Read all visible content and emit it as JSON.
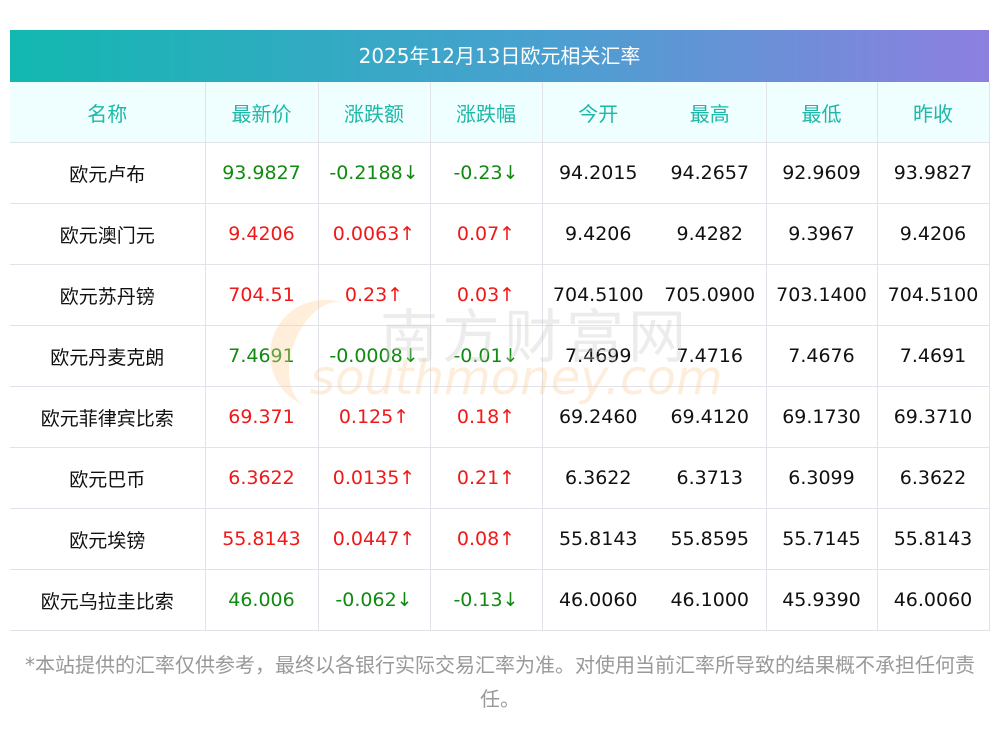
{
  "title": "2025年12月13日欧元相关汇率",
  "headers": [
    "名称",
    "最新价",
    "涨跌额",
    "涨跌幅",
    "今开",
    "最高",
    "最低",
    "昨收"
  ],
  "rows": [
    {
      "name": "欧元卢布",
      "latest": "93.9827",
      "change": "-0.2188↓",
      "pct": "-0.23↓",
      "open": "94.2015",
      "high": "94.2657",
      "low": "92.9609",
      "prev": "93.9827",
      "dir": "down"
    },
    {
      "name": "欧元澳门元",
      "latest": "9.4206",
      "change": "0.0063↑",
      "pct": "0.07↑",
      "open": "9.4206",
      "high": "9.4282",
      "low": "9.3967",
      "prev": "9.4206",
      "dir": "up"
    },
    {
      "name": "欧元苏丹镑",
      "latest": "704.51",
      "change": "0.23↑",
      "pct": "0.03↑",
      "open": "704.5100",
      "high": "705.0900",
      "low": "703.1400",
      "prev": "704.5100",
      "dir": "up"
    },
    {
      "name": "欧元丹麦克朗",
      "latest": "7.4691",
      "change": "-0.0008↓",
      "pct": "-0.01↓",
      "open": "7.4699",
      "high": "7.4716",
      "low": "7.4676",
      "prev": "7.4691",
      "dir": "down"
    },
    {
      "name": "欧元菲律宾比索",
      "latest": "69.371",
      "change": "0.125↑",
      "pct": "0.18↑",
      "open": "69.2460",
      "high": "69.4120",
      "low": "69.1730",
      "prev": "69.3710",
      "dir": "up"
    },
    {
      "name": "欧元巴币",
      "latest": "6.3622",
      "change": "0.0135↑",
      "pct": "0.21↑",
      "open": "6.3622",
      "high": "6.3713",
      "low": "6.3099",
      "prev": "6.3622",
      "dir": "up"
    },
    {
      "name": "欧元埃镑",
      "latest": "55.8143",
      "change": "0.0447↑",
      "pct": "0.08↑",
      "open": "55.8143",
      "high": "55.8595",
      "low": "55.7145",
      "prev": "55.8143",
      "dir": "up"
    },
    {
      "name": "欧元乌拉圭比索",
      "latest": "46.006",
      "change": "-0.062↓",
      "pct": "-0.13↓",
      "open": "46.0060",
      "high": "46.1000",
      "low": "45.9390",
      "prev": "46.0060",
      "dir": "down"
    }
  ],
  "watermark": {
    "cn": "南方财富网",
    "en": "southmoney.com"
  },
  "note": "*本站提供的汇率仅供参考，最终以各银行实际交易汇率为准。对使用当前汇率所导致的结果概不承担任何责任。",
  "colors": {
    "up": "#f01818",
    "down": "#118a11",
    "header": "#1db8a8"
  }
}
